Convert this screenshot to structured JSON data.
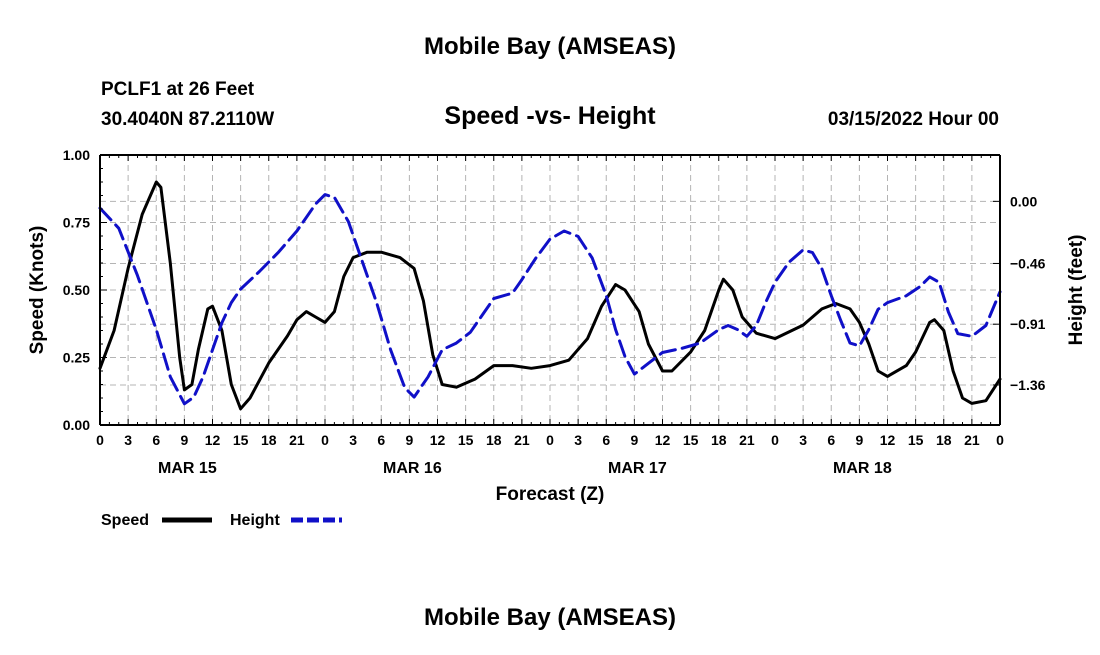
{
  "header": {
    "title": "Mobile Bay (AMSEAS)",
    "station": "PCLF1 at 26 Feet",
    "coords": "30.4040N  87.2110W",
    "subtitle": "Speed -vs- Height",
    "datetime": "03/15/2022 Hour 00",
    "footer_title": "Mobile Bay (AMSEAS)"
  },
  "chart_data": {
    "type": "line",
    "title": "Speed -vs- Height",
    "xlabel": "Forecast (Z)",
    "ylabel_left": "Speed (Knots)",
    "ylabel_right": "Height (feet)",
    "x_range_hours": [
      0,
      96
    ],
    "y_left_range": [
      0,
      1.0
    ],
    "y_right_range": [
      -1.6567,
      0.3433
    ],
    "grid": true,
    "x_tick_labels": [
      "0",
      "3",
      "6",
      "9",
      "12",
      "15",
      "18",
      "21",
      "0",
      "3",
      "6",
      "9",
      "12",
      "15",
      "18",
      "21",
      "0",
      "3",
      "6",
      "9",
      "12",
      "15",
      "18",
      "21",
      "0",
      "3",
      "6",
      "9",
      "12",
      "15",
      "18",
      "21",
      "0"
    ],
    "day_labels": [
      {
        "label": "MAR 15",
        "hour": 9
      },
      {
        "label": "MAR 16",
        "hour": 33
      },
      {
        "label": "MAR 17",
        "hour": 57
      },
      {
        "label": "MAR 18",
        "hour": 81
      }
    ],
    "y_left_ticks": [
      {
        "value": 0.0,
        "label": "0.00"
      },
      {
        "value": 0.25,
        "label": "0.25"
      },
      {
        "value": 0.5,
        "label": "0.50"
      },
      {
        "value": 0.75,
        "label": "0.75"
      },
      {
        "value": 1.0,
        "label": "1.00"
      }
    ],
    "y_right_ticks": [
      {
        "value": 0.0,
        "label": "0.00"
      },
      {
        "value": -0.46,
        "label": "−0.46"
      },
      {
        "value": -0.91,
        "label": "−0.91"
      },
      {
        "value": -1.36,
        "label": "−1.36"
      }
    ],
    "legend": [
      {
        "name": "Speed",
        "color": "#000000",
        "style": "solid"
      },
      {
        "name": "Height",
        "color": "#1010c8",
        "style": "dashed"
      }
    ],
    "series": [
      {
        "name": "Speed",
        "axis": "left",
        "color": "#000000",
        "points": [
          [
            0,
            0.21
          ],
          [
            1.5,
            0.35
          ],
          [
            3,
            0.58
          ],
          [
            4.5,
            0.78
          ],
          [
            6,
            0.9
          ],
          [
            6.5,
            0.88
          ],
          [
            7.5,
            0.6
          ],
          [
            8.5,
            0.25
          ],
          [
            9,
            0.13
          ],
          [
            9.8,
            0.15
          ],
          [
            10.5,
            0.28
          ],
          [
            11.5,
            0.43
          ],
          [
            12,
            0.44
          ],
          [
            13,
            0.35
          ],
          [
            14,
            0.15
          ],
          [
            15,
            0.06
          ],
          [
            16,
            0.1
          ],
          [
            18,
            0.23
          ],
          [
            20,
            0.33
          ],
          [
            21,
            0.39
          ],
          [
            22,
            0.42
          ],
          [
            23,
            0.4
          ],
          [
            24,
            0.38
          ],
          [
            25,
            0.42
          ],
          [
            26,
            0.55
          ],
          [
            27,
            0.62
          ],
          [
            28.5,
            0.64
          ],
          [
            30,
            0.64
          ],
          [
            32,
            0.62
          ],
          [
            33.5,
            0.58
          ],
          [
            34.5,
            0.46
          ],
          [
            35.5,
            0.26
          ],
          [
            36.5,
            0.15
          ],
          [
            38,
            0.14
          ],
          [
            40,
            0.17
          ],
          [
            42,
            0.22
          ],
          [
            44,
            0.22
          ],
          [
            46,
            0.21
          ],
          [
            48,
            0.22
          ],
          [
            50,
            0.24
          ],
          [
            52,
            0.32
          ],
          [
            53.5,
            0.44
          ],
          [
            55,
            0.52
          ],
          [
            56,
            0.5
          ],
          [
            57.5,
            0.42
          ],
          [
            58.5,
            0.3
          ],
          [
            60,
            0.2
          ],
          [
            61,
            0.2
          ],
          [
            63,
            0.27
          ],
          [
            64.5,
            0.35
          ],
          [
            66,
            0.5
          ],
          [
            66.5,
            0.54
          ],
          [
            67.5,
            0.5
          ],
          [
            68.5,
            0.4
          ],
          [
            70,
            0.34
          ],
          [
            72,
            0.32
          ],
          [
            75,
            0.37
          ],
          [
            77,
            0.43
          ],
          [
            78.5,
            0.45
          ],
          [
            80,
            0.43
          ],
          [
            81,
            0.38
          ],
          [
            82,
            0.3
          ],
          [
            83,
            0.2
          ],
          [
            84,
            0.18
          ],
          [
            86,
            0.22
          ],
          [
            87,
            0.27
          ],
          [
            88.5,
            0.38
          ],
          [
            89,
            0.39
          ],
          [
            90,
            0.35
          ],
          [
            91,
            0.2
          ],
          [
            92,
            0.1
          ],
          [
            93,
            0.08
          ],
          [
            94.5,
            0.09
          ],
          [
            96,
            0.17
          ]
        ]
      },
      {
        "name": "Height",
        "axis": "right",
        "color": "#1010c8",
        "points": [
          [
            0,
            -0.05
          ],
          [
            2,
            -0.2
          ],
          [
            4,
            -0.55
          ],
          [
            6,
            -0.95
          ],
          [
            7.5,
            -1.3
          ],
          [
            9,
            -1.5
          ],
          [
            10,
            -1.45
          ],
          [
            11,
            -1.3
          ],
          [
            12,
            -1.1
          ],
          [
            13,
            -0.9
          ],
          [
            14,
            -0.75
          ],
          [
            15,
            -0.65
          ],
          [
            17,
            -0.52
          ],
          [
            19,
            -0.38
          ],
          [
            21,
            -0.22
          ],
          [
            23,
            -0.02
          ],
          [
            24,
            0.05
          ],
          [
            25,
            0.03
          ],
          [
            26.5,
            -0.15
          ],
          [
            28,
            -0.45
          ],
          [
            29.5,
            -0.75
          ],
          [
            31,
            -1.1
          ],
          [
            32.5,
            -1.38
          ],
          [
            33.5,
            -1.45
          ],
          [
            35,
            -1.3
          ],
          [
            36.5,
            -1.1
          ],
          [
            38,
            -1.05
          ],
          [
            39.5,
            -0.97
          ],
          [
            41,
            -0.82
          ],
          [
            42,
            -0.72
          ],
          [
            44,
            -0.68
          ],
          [
            45,
            -0.58
          ],
          [
            46.5,
            -0.42
          ],
          [
            48,
            -0.28
          ],
          [
            49.5,
            -0.22
          ],
          [
            51,
            -0.26
          ],
          [
            52.5,
            -0.42
          ],
          [
            54,
            -0.7
          ],
          [
            55,
            -0.95
          ],
          [
            56,
            -1.15
          ],
          [
            57,
            -1.28
          ],
          [
            58.5,
            -1.2
          ],
          [
            60,
            -1.12
          ],
          [
            62,
            -1.09
          ],
          [
            64,
            -1.05
          ],
          [
            66,
            -0.95
          ],
          [
            67,
            -0.92
          ],
          [
            68,
            -0.95
          ],
          [
            69,
            -1.0
          ],
          [
            70,
            -0.92
          ],
          [
            71,
            -0.75
          ],
          [
            72,
            -0.6
          ],
          [
            73.5,
            -0.45
          ],
          [
            75,
            -0.36
          ],
          [
            76,
            -0.38
          ],
          [
            77,
            -0.5
          ],
          [
            78,
            -0.7
          ],
          [
            79,
            -0.88
          ],
          [
            80,
            -1.05
          ],
          [
            81,
            -1.07
          ],
          [
            82,
            -0.95
          ],
          [
            83,
            -0.8
          ],
          [
            84,
            -0.75
          ],
          [
            86,
            -0.7
          ],
          [
            87.5,
            -0.63
          ],
          [
            88.5,
            -0.56
          ],
          [
            89.5,
            -0.6
          ],
          [
            90.5,
            -0.82
          ],
          [
            91.5,
            -0.98
          ],
          [
            93,
            -1.0
          ],
          [
            94.5,
            -0.92
          ],
          [
            96,
            -0.67
          ]
        ]
      }
    ]
  }
}
